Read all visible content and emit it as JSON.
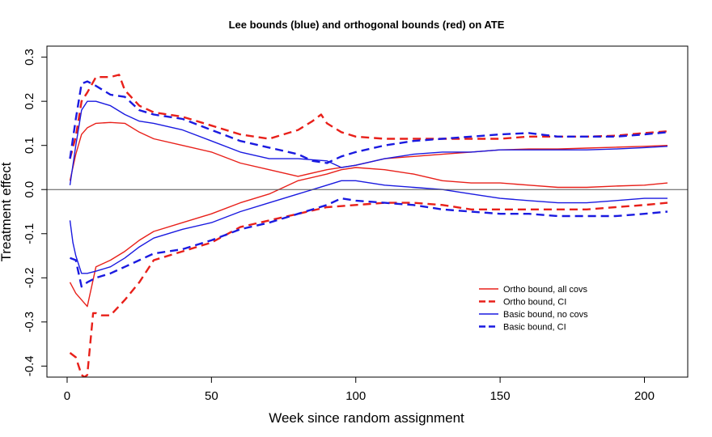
{
  "chart_data": {
    "type": "line",
    "title": "Lee bounds (blue) and orthogonal bounds (red) on ATE",
    "xlabel": "Week since random assignment",
    "ylabel": "Treatment effect",
    "xlim": [
      -7,
      215
    ],
    "ylim": [
      -0.425,
      0.325
    ],
    "xticks": [
      0,
      50,
      100,
      150,
      200
    ],
    "xtick_labels": [
      "0",
      "50",
      "100",
      "150",
      "200"
    ],
    "yticks": [
      -0.4,
      -0.3,
      -0.2,
      -0.1,
      0.0,
      0.1,
      0.2,
      0.3
    ],
    "ytick_labels": [
      "-0.4",
      "-0.3",
      "-0.2",
      "-0.1",
      "0.0",
      "0.1",
      "0.2",
      "0.3"
    ],
    "reference_line_y": 0,
    "grid": false,
    "legend_position": "right",
    "colors": {
      "ortho": "#e8201a",
      "basic": "#1a1ae0",
      "zero_line": "#555555"
    },
    "series": [
      {
        "name": "Ortho bound, all covs",
        "legend": true,
        "color": "#e8201a",
        "dash": "solid",
        "width": 1.4,
        "x": [
          1,
          3,
          5,
          7,
          10,
          15,
          20,
          25,
          30,
          40,
          50,
          60,
          70,
          80,
          90,
          100,
          110,
          120,
          130,
          140,
          150,
          160,
          170,
          180,
          190,
          200,
          208
        ],
        "y": [
          0.02,
          0.08,
          0.125,
          0.14,
          0.15,
          0.152,
          0.15,
          0.13,
          0.115,
          0.1,
          0.085,
          0.06,
          0.045,
          0.03,
          0.045,
          0.055,
          0.07,
          0.075,
          0.08,
          0.085,
          0.09,
          0.092,
          0.092,
          0.094,
          0.096,
          0.098,
          0.1
        ]
      },
      {
        "name": "Ortho bound, all covs (lower)",
        "legend": false,
        "color": "#e8201a",
        "dash": "solid",
        "width": 1.4,
        "x": [
          1,
          3,
          5,
          7,
          10,
          15,
          20,
          25,
          30,
          40,
          50,
          60,
          70,
          80,
          90,
          95,
          100,
          110,
          120,
          130,
          140,
          150,
          160,
          170,
          180,
          190,
          200,
          208
        ],
        "y": [
          -0.21,
          -0.235,
          -0.25,
          -0.265,
          -0.175,
          -0.16,
          -0.14,
          -0.115,
          -0.095,
          -0.075,
          -0.055,
          -0.03,
          -0.01,
          0.02,
          0.035,
          0.045,
          0.05,
          0.045,
          0.035,
          0.02,
          0.015,
          0.015,
          0.01,
          0.005,
          0.005,
          0.008,
          0.01,
          0.015
        ]
      },
      {
        "name": "Ortho bound, CI",
        "legend": true,
        "color": "#e8201a",
        "dash": "dashed",
        "width": 2.4,
        "x": [
          1,
          3,
          5,
          7,
          10,
          15,
          18,
          20,
          25,
          30,
          35,
          40,
          50,
          60,
          70,
          80,
          85,
          88,
          90,
          95,
          100,
          110,
          120,
          130,
          140,
          150,
          160,
          170,
          180,
          190,
          200,
          208
        ],
        "y": [
          0.07,
          0.12,
          0.2,
          0.22,
          0.255,
          0.255,
          0.26,
          0.225,
          0.19,
          0.175,
          0.17,
          0.165,
          0.145,
          0.125,
          0.115,
          0.135,
          0.155,
          0.17,
          0.15,
          0.13,
          0.12,
          0.115,
          0.115,
          0.115,
          0.115,
          0.115,
          0.12,
          0.12,
          0.12,
          0.122,
          0.128,
          0.132
        ]
      },
      {
        "name": "Ortho bound, CI (lower)",
        "legend": false,
        "color": "#e8201a",
        "dash": "dashed",
        "width": 2.4,
        "x": [
          1,
          3,
          5,
          6,
          7,
          8,
          9,
          10,
          12,
          15,
          20,
          25,
          30,
          40,
          50,
          60,
          70,
          80,
          90,
          100,
          110,
          120,
          130,
          140,
          150,
          160,
          170,
          180,
          190,
          200,
          208
        ],
        "y": [
          -0.37,
          -0.38,
          -0.42,
          -0.425,
          -0.42,
          -0.35,
          -0.28,
          -0.28,
          -0.285,
          -0.285,
          -0.25,
          -0.21,
          -0.16,
          -0.14,
          -0.12,
          -0.085,
          -0.07,
          -0.055,
          -0.04,
          -0.035,
          -0.03,
          -0.03,
          -0.035,
          -0.045,
          -0.045,
          -0.045,
          -0.045,
          -0.045,
          -0.04,
          -0.035,
          -0.03
        ]
      },
      {
        "name": "Basic bound, no covs",
        "legend": true,
        "color": "#1a1ae0",
        "dash": "solid",
        "width": 1.4,
        "x": [
          1,
          3,
          5,
          7,
          10,
          15,
          20,
          25,
          30,
          40,
          50,
          60,
          70,
          80,
          90,
          95,
          100,
          110,
          120,
          130,
          140,
          150,
          160,
          170,
          180,
          190,
          200,
          208
        ],
        "y": [
          0.01,
          0.1,
          0.18,
          0.2,
          0.2,
          0.19,
          0.17,
          0.155,
          0.15,
          0.135,
          0.11,
          0.085,
          0.07,
          0.07,
          0.065,
          0.05,
          0.055,
          0.07,
          0.08,
          0.085,
          0.085,
          0.09,
          0.09,
          0.09,
          0.09,
          0.092,
          0.095,
          0.098
        ]
      },
      {
        "name": "Basic bound, no covs (lower)",
        "legend": false,
        "color": "#1a1ae0",
        "dash": "solid",
        "width": 1.4,
        "x": [
          1,
          2,
          3,
          4,
          5,
          7,
          10,
          15,
          20,
          25,
          30,
          40,
          50,
          60,
          70,
          80,
          90,
          95,
          100,
          110,
          120,
          130,
          140,
          150,
          160,
          170,
          180,
          190,
          200,
          208
        ],
        "y": [
          -0.07,
          -0.12,
          -0.15,
          -0.17,
          -0.19,
          -0.19,
          -0.185,
          -0.175,
          -0.155,
          -0.13,
          -0.11,
          -0.09,
          -0.075,
          -0.05,
          -0.03,
          -0.01,
          0.01,
          0.02,
          0.02,
          0.01,
          0.005,
          0.0,
          -0.01,
          -0.02,
          -0.025,
          -0.03,
          -0.03,
          -0.025,
          -0.02,
          -0.02
        ]
      },
      {
        "name": "Basic bound, CI",
        "legend": true,
        "color": "#1a1ae0",
        "dash": "dashed",
        "width": 2.4,
        "x": [
          1,
          3,
          5,
          7,
          10,
          15,
          20,
          25,
          30,
          40,
          50,
          60,
          70,
          80,
          85,
          90,
          95,
          100,
          110,
          120,
          130,
          140,
          150,
          160,
          170,
          180,
          190,
          200,
          208
        ],
        "y": [
          0.07,
          0.16,
          0.24,
          0.245,
          0.235,
          0.215,
          0.21,
          0.18,
          0.17,
          0.16,
          0.135,
          0.11,
          0.095,
          0.08,
          0.065,
          0.06,
          0.075,
          0.085,
          0.1,
          0.11,
          0.115,
          0.12,
          0.125,
          0.128,
          0.12,
          0.12,
          0.12,
          0.125,
          0.13
        ]
      },
      {
        "name": "Basic bound, CI (lower)",
        "legend": false,
        "color": "#1a1ae0",
        "dash": "dashed",
        "width": 2.4,
        "x": [
          1,
          3,
          5,
          7,
          10,
          15,
          20,
          25,
          30,
          40,
          50,
          60,
          70,
          80,
          90,
          95,
          100,
          110,
          120,
          130,
          140,
          150,
          160,
          170,
          180,
          190,
          200,
          208
        ],
        "y": [
          -0.155,
          -0.16,
          -0.22,
          -0.21,
          -0.2,
          -0.19,
          -0.175,
          -0.16,
          -0.145,
          -0.135,
          -0.115,
          -0.09,
          -0.075,
          -0.055,
          -0.035,
          -0.02,
          -0.025,
          -0.03,
          -0.035,
          -0.045,
          -0.05,
          -0.055,
          -0.055,
          -0.06,
          -0.06,
          -0.06,
          -0.055,
          -0.05
        ]
      }
    ]
  }
}
